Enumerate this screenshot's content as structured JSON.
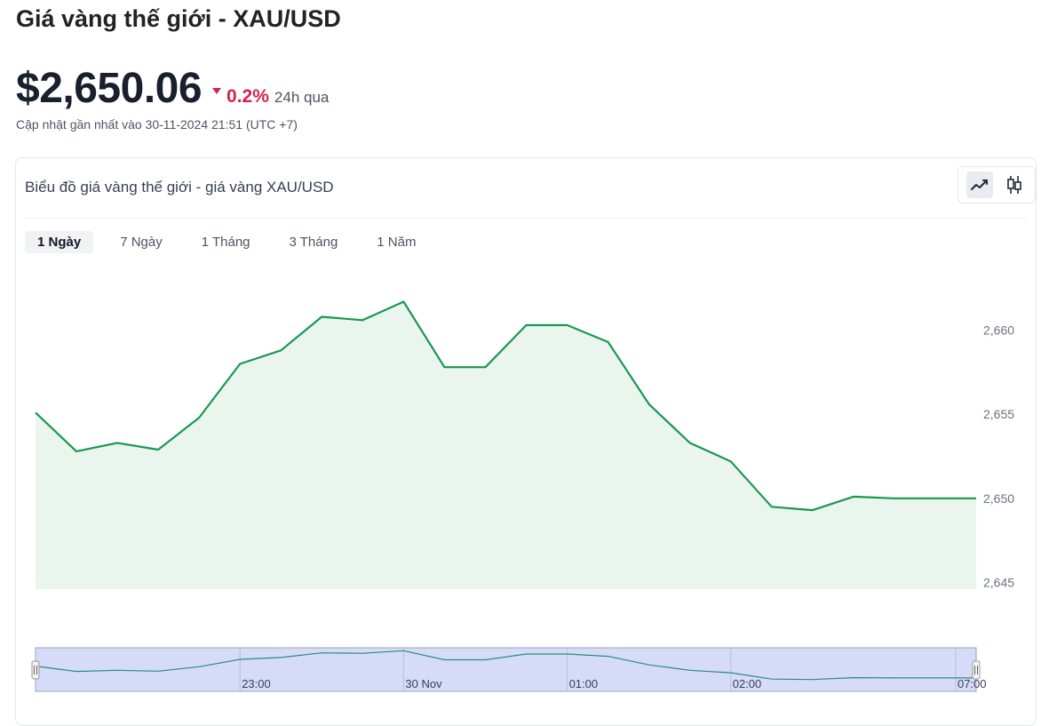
{
  "header": {
    "title": "Giá vàng thế giới - XAU/USD",
    "price": "$2,650.06",
    "change_pct": "0.2%",
    "change_period": "24h qua",
    "updated": "Cập nhật gần nhất vào 30-11-2024 21:51 (UTC +7)"
  },
  "card": {
    "title": "Biểu đồ giá vàng thế giới - giá vàng XAU/USD",
    "toggle": {
      "line_icon": "line-chart-icon",
      "candle_icon": "candlestick-icon",
      "active": "line"
    },
    "tabs": [
      {
        "label": "1 Ngày",
        "active": true
      },
      {
        "label": "7 Ngày",
        "active": false
      },
      {
        "label": "1 Tháng",
        "active": false
      },
      {
        "label": "3 Tháng",
        "active": false
      },
      {
        "label": "1 Năm",
        "active": false
      }
    ]
  },
  "colors": {
    "line": "#1a9850",
    "area": "#eaf5ee",
    "navigator_bg": "#d6dcf8",
    "navigator_line": "#2b8a7f",
    "down": "#d5234b"
  },
  "chart_data": {
    "type": "area",
    "y_ticks": [
      "2,645",
      "2,650",
      "2,655",
      "2,660"
    ],
    "y_tick_values": [
      2645,
      2650,
      2655,
      2660
    ],
    "ylim": [
      2644.6,
      2662.2
    ],
    "values": [
      2655.1,
      2652.8,
      2653.3,
      2652.9,
      2654.8,
      2658.0,
      2658.8,
      2660.8,
      2660.6,
      2661.7,
      2657.8,
      2657.8,
      2660.3,
      2660.3,
      2659.3,
      2655.6,
      2653.3,
      2652.2,
      2649.5,
      2649.3,
      2650.1,
      2650.0,
      2650.0,
      2650.0
    ],
    "navigator_ticks": [
      "23:00",
      "30 Nov",
      "01:00",
      "02:00",
      "07:00"
    ],
    "navigator_tick_index": [
      5,
      9,
      13,
      17,
      22.5
    ]
  }
}
